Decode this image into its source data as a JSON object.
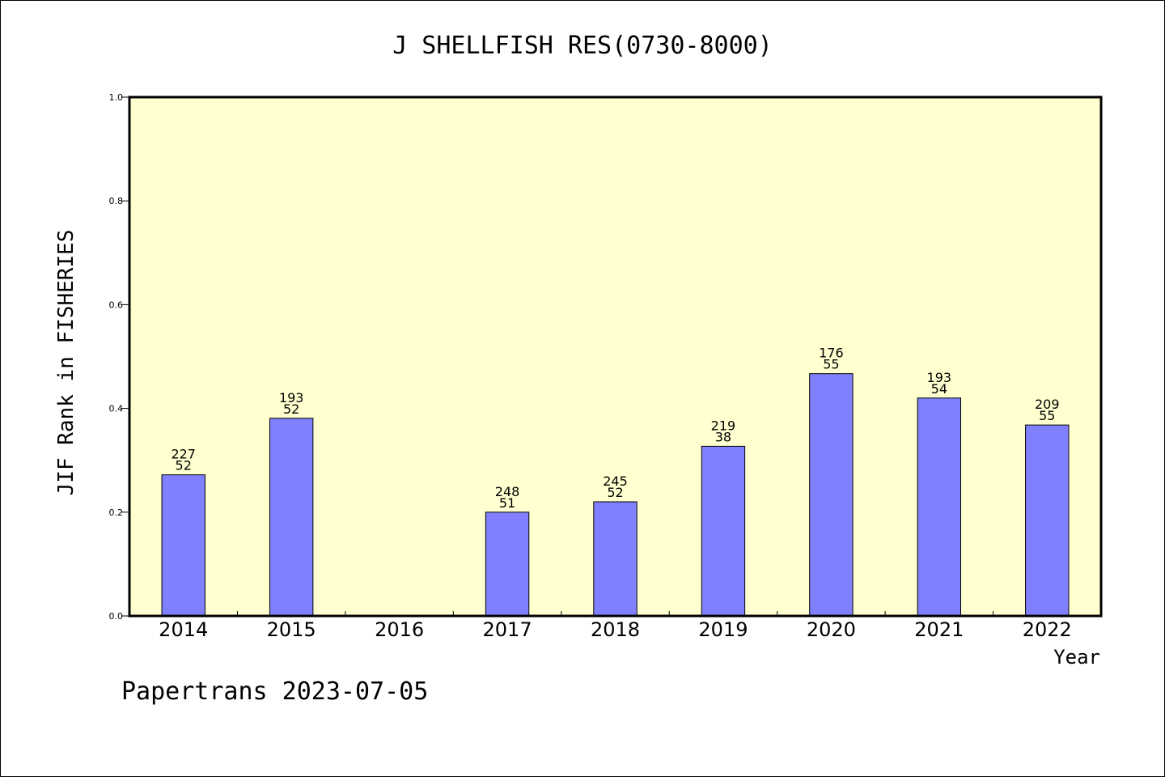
{
  "chart_data": {
    "type": "bar",
    "title": "J SHELLFISH RES(0730-8000)",
    "xlabel": "Year",
    "ylabel": "JIF Rank in FISHERIES",
    "ylim": [
      0,
      1.0
    ],
    "yticks": [
      "0.0",
      "0.2",
      "0.4",
      "0.6",
      "0.8",
      "1.0"
    ],
    "categories": [
      "2014",
      "2015",
      "2016",
      "2017",
      "2018",
      "2019",
      "2020",
      "2021",
      "2022"
    ],
    "values": [
      0.272,
      0.381,
      null,
      0.2,
      0.22,
      0.327,
      0.467,
      0.42,
      0.368
    ],
    "label_top": [
      "227",
      "193",
      "",
      "248",
      "245",
      "219",
      "176",
      "193",
      "209"
    ],
    "label_bottom": [
      "52",
      "52",
      "",
      "51",
      "52",
      "38",
      "55",
      "54",
      "55"
    ],
    "plot_background": "#ffffd0",
    "bar_color": "#8080ff",
    "grid": false,
    "legend": "none"
  },
  "footer": "Papertrans 2023-07-05"
}
